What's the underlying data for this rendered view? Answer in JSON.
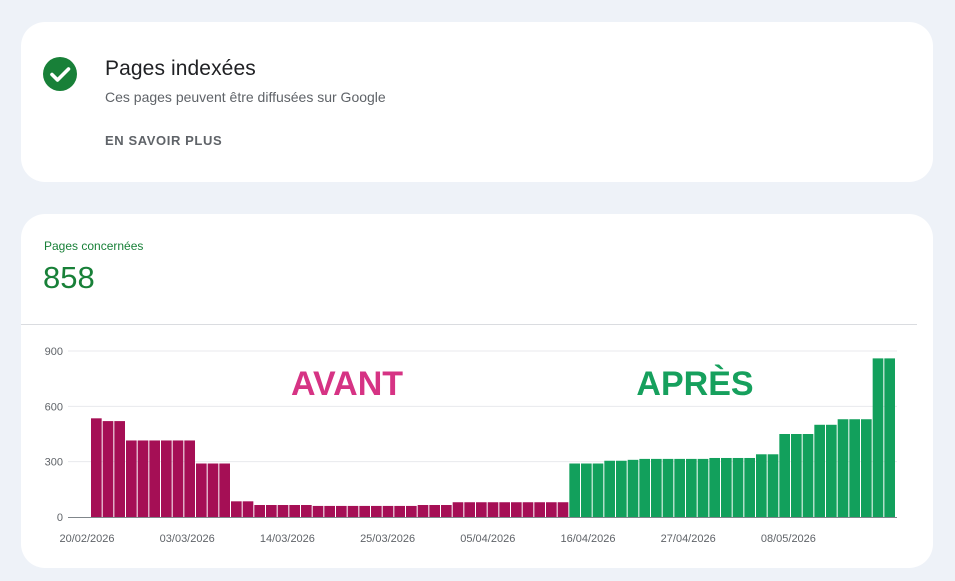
{
  "status_card": {
    "icon": "check-circle-icon",
    "icon_color": "#188038",
    "title": "Pages indexées",
    "subtitle": "Ces pages peuvent être diffusées sur Google",
    "link_label": "EN SAVOIR PLUS"
  },
  "metric": {
    "label": "Pages concernées",
    "value": "858",
    "color": "#188038"
  },
  "annotations": {
    "before": "AVANT",
    "before_color": "#d63384",
    "after": "APRÈS",
    "after_color": "#16a05d"
  },
  "chart_data": {
    "type": "bar",
    "y_ticks": [
      "900",
      "600",
      "300",
      "0"
    ],
    "ylim": [
      0,
      900
    ],
    "x_tick_labels": [
      "20/02/2026",
      "03/03/2026",
      "14/03/2026",
      "25/03/2026",
      "05/04/2026",
      "16/04/2026",
      "27/04/2026",
      "08/05/2026"
    ],
    "grid": true,
    "series": [
      {
        "color": "#a50f55",
        "values": [
          535,
          520,
          520,
          415,
          415,
          415,
          415,
          415,
          415,
          290,
          290,
          290,
          85,
          85,
          65,
          65,
          65,
          65,
          65,
          60,
          60,
          60,
          60,
          60,
          60,
          60,
          60,
          60,
          65,
          65,
          65,
          80,
          80,
          80,
          80,
          80,
          80,
          80,
          80,
          80,
          80
        ]
      },
      {
        "color": "#12a05c",
        "values": [
          290,
          290,
          290,
          305,
          305,
          310,
          315,
          315,
          315,
          315,
          315,
          315,
          320,
          320,
          320,
          320,
          340,
          340,
          450,
          450,
          450,
          500,
          500,
          530,
          530,
          530,
          860,
          860
        ]
      }
    ]
  }
}
